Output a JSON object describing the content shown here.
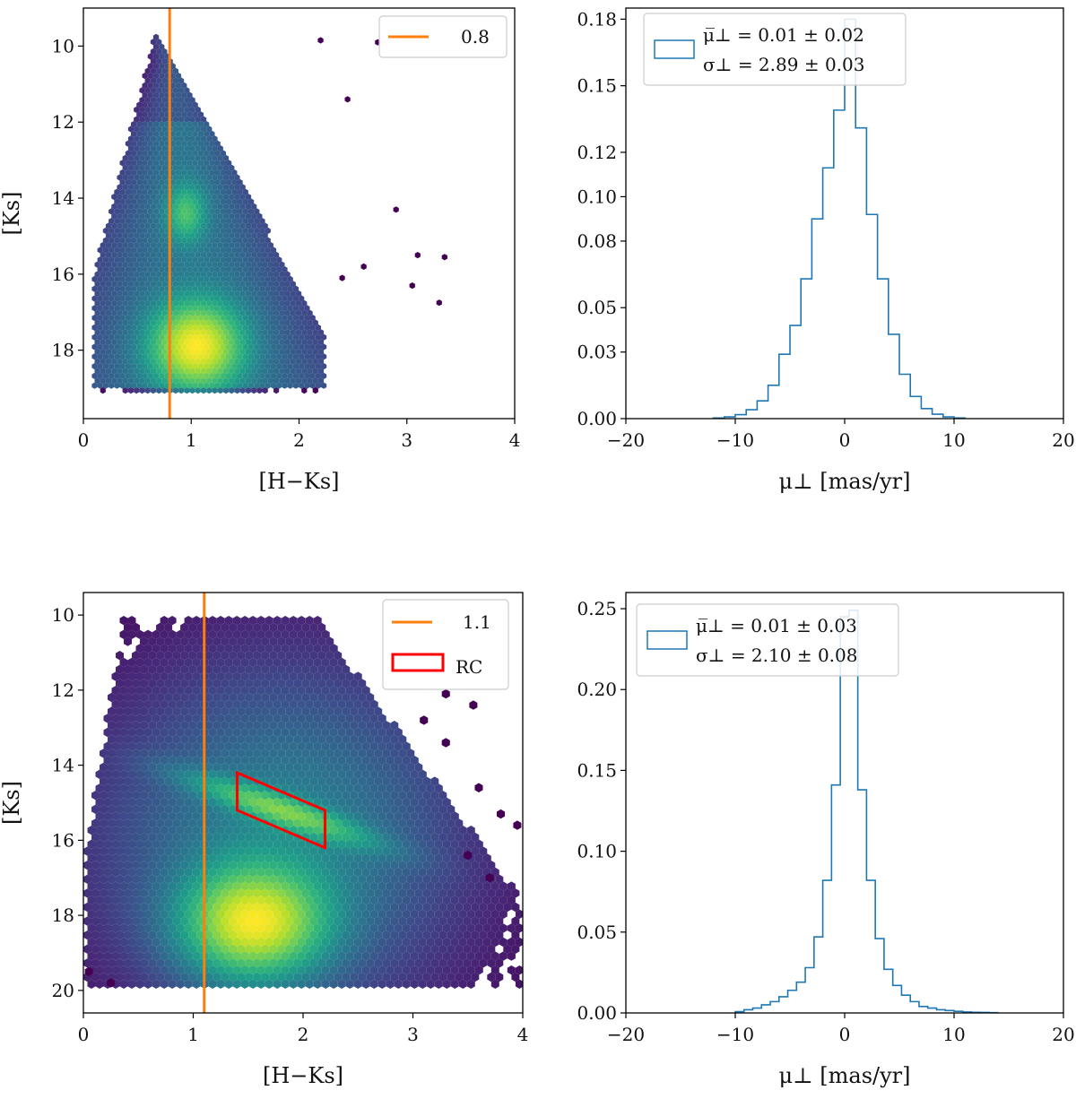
{
  "chart_data": [
    {
      "type": "hexbin",
      "panel": "top-left",
      "xlabel": "[H−Ks]",
      "ylabel": "[Ks]",
      "xlim": [
        0,
        4
      ],
      "ylim": [
        19.8,
        9.0
      ],
      "y_inverted": true,
      "xticks": [
        0,
        1,
        2,
        3,
        4
      ],
      "xtick_labels": [
        "0",
        "1",
        "2",
        "3",
        "4"
      ],
      "yticks": [
        10,
        12,
        14,
        16,
        18
      ],
      "ytick_labels": [
        "10",
        "12",
        "14",
        "16",
        "18"
      ],
      "vline": {
        "x": 0.8,
        "label": "0.8",
        "color": "#ff7f0e"
      },
      "density_peaks": [
        {
          "x": 1.05,
          "y": 17.9,
          "weight": 1.0
        },
        {
          "x": 0.95,
          "y": 14.4,
          "weight": 0.45
        }
      ],
      "colormap": "viridis",
      "legend": "top-right"
    },
    {
      "type": "histogram",
      "panel": "top-right",
      "xlabel": "μ⊥ [mas/yr]",
      "ylabel": "",
      "xlim": [
        -20,
        20
      ],
      "ylim": [
        0,
        0.185
      ],
      "xticks": [
        -20,
        -10,
        0,
        10,
        20
      ],
      "xtick_labels": [
        "−20",
        "−10",
        "0",
        "10",
        "20"
      ],
      "yticks": [
        0.0,
        0.03,
        0.05,
        0.08,
        0.1,
        0.12,
        0.15,
        0.18
      ],
      "ytick_labels": [
        "0.00",
        "0.03",
        "0.05",
        "0.08",
        "0.10",
        "0.12",
        "0.15",
        "0.18"
      ],
      "bin_edges": [
        -12,
        -11,
        -10,
        -9,
        -8,
        -7,
        -6,
        -5,
        -4,
        -3,
        -2,
        -1,
        0,
        1,
        2,
        3,
        4,
        5,
        6,
        7,
        8,
        9,
        10,
        11
      ],
      "values": [
        0.0003,
        0.0008,
        0.0018,
        0.004,
        0.008,
        0.015,
        0.029,
        0.042,
        0.063,
        0.09,
        0.113,
        0.139,
        0.18,
        0.131,
        0.092,
        0.063,
        0.038,
        0.02,
        0.01,
        0.0045,
        0.002,
        0.0008,
        0.0003
      ],
      "color": "#1f77b4",
      "legend": {
        "position": "top-left",
        "line1": "μ̅⊥ = 0.01 ± 0.02",
        "line2": "σ⊥ = 2.89 ± 0.03"
      }
    },
    {
      "type": "hexbin",
      "panel": "bottom-left",
      "xlabel": "[H−Ks]",
      "ylabel": "[Ks]",
      "xlim": [
        0,
        4
      ],
      "ylim": [
        20.6,
        9.4
      ],
      "y_inverted": true,
      "xticks": [
        0,
        1,
        2,
        3,
        4
      ],
      "xtick_labels": [
        "0",
        "1",
        "2",
        "3",
        "4"
      ],
      "yticks": [
        10,
        12,
        14,
        16,
        18,
        20
      ],
      "ytick_labels": [
        "10",
        "12",
        "14",
        "16",
        "18",
        "20"
      ],
      "vline": {
        "x": 1.1,
        "label": "1.1",
        "color": "#ff7f0e"
      },
      "rc_box": {
        "label": "RC",
        "color": "#ff0000",
        "vertices": [
          [
            1.4,
            14.2
          ],
          [
            2.2,
            15.2
          ],
          [
            2.2,
            16.2
          ],
          [
            1.4,
            15.2
          ]
        ]
      },
      "density_peaks": [
        {
          "x": 1.55,
          "y": 18.2,
          "weight": 1.0
        },
        {
          "x": 1.75,
          "y": 15.2,
          "weight": 0.55
        }
      ],
      "colormap": "viridis",
      "legend": "top-right"
    },
    {
      "type": "histogram",
      "panel": "bottom-right",
      "xlabel": "μ⊥ [mas/yr]",
      "ylabel": "",
      "xlim": [
        -20,
        20
      ],
      "ylim": [
        0,
        0.26
      ],
      "xticks": [
        -20,
        -10,
        0,
        10,
        20
      ],
      "xtick_labels": [
        "−20",
        "−10",
        "0",
        "10",
        "20"
      ],
      "yticks": [
        0.0,
        0.05,
        0.1,
        0.15,
        0.2,
        0.25
      ],
      "ytick_labels": [
        "0.00",
        "0.05",
        "0.10",
        "0.15",
        "0.20",
        "0.25"
      ],
      "bin_edges": [
        -10,
        -9.2,
        -8.4,
        -7.6,
        -6.8,
        -6.0,
        -5.2,
        -4.4,
        -3.6,
        -2.8,
        -2.0,
        -1.2,
        -0.4,
        0.4,
        1.2,
        2.0,
        2.8,
        3.6,
        4.4,
        5.2,
        6.0,
        6.8,
        7.6,
        8.4,
        9.2,
        10.0,
        10.8,
        11.6,
        12.4,
        13.2,
        14.0
      ],
      "values": [
        0.0008,
        0.002,
        0.003,
        0.005,
        0.007,
        0.01,
        0.014,
        0.019,
        0.028,
        0.047,
        0.082,
        0.141,
        0.245,
        0.249,
        0.138,
        0.082,
        0.046,
        0.027,
        0.017,
        0.011,
        0.007,
        0.004,
        0.003,
        0.002,
        0.0015,
        0.001,
        0.0006,
        0.0004,
        0.0003,
        0.0002
      ],
      "color": "#1f77b4",
      "legend": {
        "position": "top-left",
        "line1": "μ̅⊥ = 0.01 ± 0.03",
        "line2": "σ⊥ = 2.10 ± 0.08"
      }
    }
  ]
}
